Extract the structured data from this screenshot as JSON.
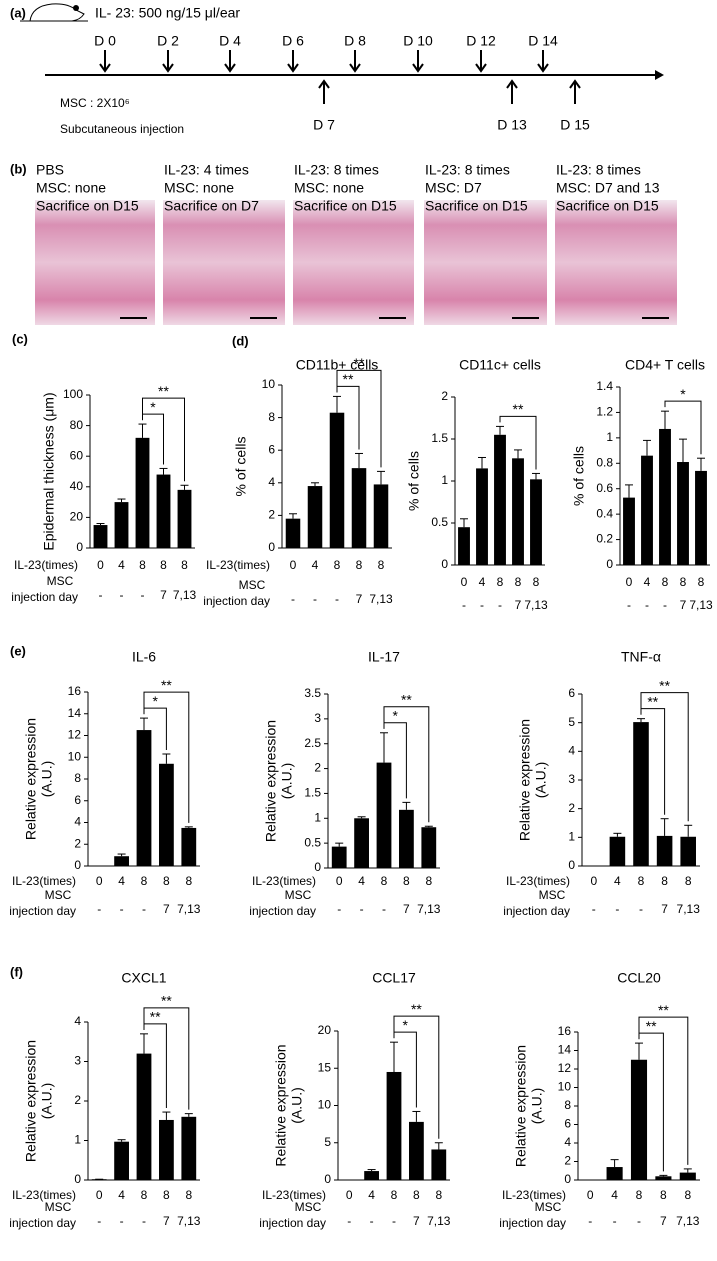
{
  "timeline": {
    "panel": "(a)",
    "title": "IL- 23: 500 ng/15 μl/ear",
    "days_above": [
      "D 0",
      "D 2",
      "D 4",
      "D 6",
      "D 8",
      "D 10",
      "D 12",
      "D 14"
    ],
    "days_below": [
      "D 7",
      "D 13",
      "D 15"
    ],
    "msc_dose": "MSC : 2X10⁶",
    "route": "Subcutaneous injection"
  },
  "histology": {
    "panel": "(b)",
    "columns": [
      [
        "PBS",
        "MSC: none",
        "Sacrifice on D15"
      ],
      [
        "IL-23: 4 times",
        "MSC: none",
        "Sacrifice on D7"
      ],
      [
        "IL-23: 8 times",
        "MSC: none",
        "Sacrifice on D15"
      ],
      [
        "IL-23: 8 times",
        "MSC: D7",
        "Sacrifice on D15"
      ],
      [
        "IL-23: 8 times",
        "MSC: D7 and 13",
        "Sacrifice on D15"
      ]
    ]
  },
  "chart_data": [
    {
      "type": "bar",
      "panel": "(c)",
      "ylabel": [
        "Epidermal thickness (μm)"
      ],
      "xlabel": "IL-23(times)",
      "xlabel2": [
        "MSC",
        "injection day"
      ],
      "categories": [
        "0",
        "4",
        "8",
        "8",
        "8"
      ],
      "categories2": [
        "-",
        "-",
        "-",
        "7",
        "7,13"
      ],
      "values": [
        15,
        30,
        72,
        48,
        38
      ],
      "errors": [
        1,
        2,
        9,
        4,
        3
      ],
      "color": "#000000",
      "ylim": [
        0,
        100
      ],
      "yticks": [
        0,
        20,
        40,
        60,
        80,
        100
      ],
      "significance": [
        {
          "from": 2,
          "to": 3,
          "label": "*"
        },
        {
          "from": 2,
          "to": 4,
          "label": "**"
        }
      ]
    },
    {
      "type": "bar",
      "panel": "(d)",
      "title": "CD11b+ cells",
      "ylabel": [
        "% of cells"
      ],
      "xlabel": "IL-23(times)",
      "xlabel2": [
        "MSC",
        "injection day"
      ],
      "categories": [
        "0",
        "4",
        "8",
        "8",
        "8"
      ],
      "categories2": [
        "-",
        "-",
        "-",
        "7",
        "7,13"
      ],
      "values": [
        1.8,
        3.8,
        8.3,
        4.9,
        3.9
      ],
      "errors": [
        0.3,
        0.2,
        1.0,
        0.9,
        0.8
      ],
      "color": "#000000",
      "ylim": [
        0,
        10
      ],
      "yticks": [
        0,
        2,
        4,
        6,
        8,
        10
      ],
      "significance": [
        {
          "from": 2,
          "to": 3,
          "label": "**"
        },
        {
          "from": 2,
          "to": 4,
          "label": "**"
        }
      ]
    },
    {
      "type": "bar",
      "title": "CD11c+ cells",
      "ylabel": [
        "% of cells"
      ],
      "categories": [
        "0",
        "4",
        "8",
        "8",
        "8"
      ],
      "categories2": [
        "-",
        "-",
        "-",
        "7",
        "7,13"
      ],
      "values": [
        0.45,
        1.15,
        1.55,
        1.27,
        1.02
      ],
      "errors": [
        0.1,
        0.13,
        0.1,
        0.1,
        0.07
      ],
      "color": "#000000",
      "ylim": [
        0,
        2
      ],
      "yticks": [
        0,
        0.5,
        1,
        1.5,
        2
      ],
      "significance": [
        {
          "from": 2,
          "to": 4,
          "label": "**"
        }
      ]
    },
    {
      "type": "bar",
      "title": "CD4+ T cells",
      "ylabel": [
        "% of cells"
      ],
      "categories": [
        "0",
        "4",
        "8",
        "8",
        "8"
      ],
      "categories2": [
        "-",
        "-",
        "-",
        "7",
        "7,13"
      ],
      "values": [
        0.53,
        0.86,
        1.07,
        0.81,
        0.74
      ],
      "errors": [
        0.1,
        0.12,
        0.14,
        0.18,
        0.1
      ],
      "color": "#000000",
      "ylim": [
        0,
        1.4
      ],
      "yticks": [
        0,
        0.2,
        0.4,
        0.6,
        0.8,
        1,
        1.2,
        1.4
      ],
      "significance": [
        {
          "from": 2,
          "to": 4,
          "label": "*"
        }
      ]
    },
    {
      "type": "bar",
      "panel": "(e)",
      "title": "IL-6",
      "ylabel": [
        "Relative expression",
        "(A.U.)"
      ],
      "xlabel": "IL-23(times)",
      "xlabel2": [
        "MSC",
        "injection day"
      ],
      "categories": [
        "0",
        "4",
        "8",
        "8",
        "8"
      ],
      "categories2": [
        "-",
        "-",
        "-",
        "7",
        "7,13"
      ],
      "values": [
        0,
        0.9,
        12.5,
        9.4,
        3.5
      ],
      "errors": [
        0,
        0.2,
        1.1,
        0.9,
        0.1
      ],
      "color": "#000000",
      "ylim": [
        0,
        16
      ],
      "yticks": [
        0,
        2,
        4,
        6,
        8,
        10,
        12,
        14,
        16
      ],
      "significance": [
        {
          "from": 2,
          "to": 3,
          "label": "*"
        },
        {
          "from": 2,
          "to": 4,
          "label": "**"
        }
      ]
    },
    {
      "type": "bar",
      "title": "IL-17",
      "ylabel": [
        "Relative expression",
        "(A.U.)"
      ],
      "xlabel": "IL-23(times)",
      "xlabel2": [
        "MSC",
        "injection day"
      ],
      "categories": [
        "0",
        "4",
        "8",
        "8",
        "8"
      ],
      "categories2": [
        "-",
        "-",
        "-",
        "7",
        "7,13"
      ],
      "values": [
        0.43,
        1.0,
        2.12,
        1.17,
        0.82
      ],
      "errors": [
        0.07,
        0.03,
        0.6,
        0.15,
        0.02
      ],
      "color": "#000000",
      "ylim": [
        0,
        3.5
      ],
      "yticks": [
        0,
        0.5,
        1,
        1.5,
        2,
        2.5,
        3,
        3.5
      ],
      "significance": [
        {
          "from": 2,
          "to": 3,
          "label": "*"
        },
        {
          "from": 2,
          "to": 4,
          "label": "**"
        }
      ]
    },
    {
      "type": "bar",
      "title": "TNF-α",
      "ylabel": [
        "Relative expression",
        "(A.U.)"
      ],
      "xlabel": "IL-23(times)",
      "xlabel2": [
        "MSC",
        "injection day"
      ],
      "categories": [
        "0",
        "4",
        "8",
        "8",
        "8"
      ],
      "categories2": [
        "-",
        "-",
        "-",
        "7",
        "7,13"
      ],
      "values": [
        0,
        1.02,
        5.02,
        1.05,
        1.02
      ],
      "errors": [
        0,
        0.12,
        0.12,
        0.6,
        0.4
      ],
      "color": "#000000",
      "ylim": [
        0,
        6
      ],
      "yticks": [
        0,
        1,
        2,
        3,
        4,
        5,
        6
      ],
      "significance": [
        {
          "from": 2,
          "to": 3,
          "label": "**"
        },
        {
          "from": 2,
          "to": 4,
          "label": "**"
        }
      ]
    },
    {
      "type": "bar",
      "panel": "(f)",
      "title": "CXCL1",
      "ylabel": [
        "Relative expression",
        "(A.U.)"
      ],
      "xlabel": "IL-23(times)",
      "xlabel2": [
        "MSC",
        "injection day"
      ],
      "categories": [
        "0",
        "4",
        "8",
        "8",
        "8"
      ],
      "categories2": [
        "-",
        "-",
        "-",
        "7",
        "7,13"
      ],
      "values": [
        0.02,
        0.97,
        3.2,
        1.52,
        1.6
      ],
      "errors": [
        0,
        0.05,
        0.5,
        0.2,
        0.08
      ],
      "color": "#000000",
      "ylim": [
        0,
        4
      ],
      "yticks": [
        0,
        1,
        2,
        3,
        4
      ],
      "significance": [
        {
          "from": 2,
          "to": 3,
          "label": "**"
        },
        {
          "from": 2,
          "to": 4,
          "label": "**"
        }
      ]
    },
    {
      "type": "bar",
      "title": "CCL17",
      "ylabel": [
        "Relative expression",
        "(A.U.)"
      ],
      "xlabel": "IL-23(times)",
      "xlabel2": [
        "MSC",
        "injection day"
      ],
      "categories": [
        "0",
        "4",
        "8",
        "8",
        "8"
      ],
      "categories2": [
        "-",
        "-",
        "-",
        "7",
        "7,13"
      ],
      "values": [
        0,
        1.2,
        14.5,
        7.8,
        4.1
      ],
      "errors": [
        0,
        0.2,
        4,
        1.4,
        0.9
      ],
      "color": "#000000",
      "ylim": [
        0,
        20
      ],
      "yticks": [
        0,
        5,
        10,
        15,
        20
      ],
      "significance": [
        {
          "from": 2,
          "to": 3,
          "label": "*"
        },
        {
          "from": 2,
          "to": 4,
          "label": "**"
        }
      ]
    },
    {
      "type": "bar",
      "title": "CCL20",
      "ylabel": [
        "Relative expression",
        "(A.U.)"
      ],
      "xlabel": "IL-23(times)",
      "xlabel2": [
        "MSC",
        "injection day"
      ],
      "categories": [
        "0",
        "4",
        "8",
        "8",
        "8"
      ],
      "categories2": [
        "-",
        "-",
        "-",
        "7",
        "7,13"
      ],
      "values": [
        0,
        1.4,
        13,
        0.4,
        0.8
      ],
      "errors": [
        0,
        0.8,
        1.8,
        0.1,
        0.4
      ],
      "color": "#000000",
      "ylim": [
        0,
        16
      ],
      "yticks": [
        0,
        2,
        4,
        6,
        8,
        10,
        12,
        14,
        16
      ],
      "significance": [
        {
          "from": 2,
          "to": 3,
          "label": "**"
        },
        {
          "from": 2,
          "to": 4,
          "label": "**"
        }
      ]
    }
  ]
}
